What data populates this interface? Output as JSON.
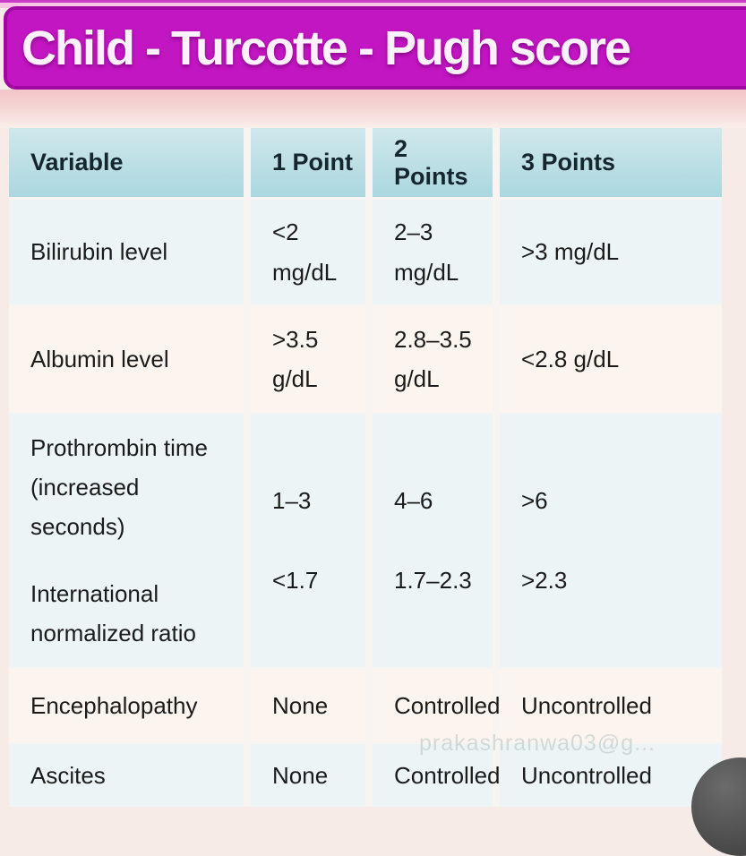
{
  "header": {
    "title": "Child - Turcotte - Pugh score"
  },
  "watermark": {
    "text": "prakashranwa03@g..."
  },
  "table": {
    "headers": [
      "Variable",
      "1 Point",
      "2 Points",
      "3 Points"
    ],
    "rows": [
      {
        "variable": [
          "Bilirubin level"
        ],
        "p1": [
          "<2",
          "mg/dL"
        ],
        "p2": [
          "2–3",
          "mg/dL"
        ],
        "p3": [
          ">3 mg/dL"
        ]
      },
      {
        "variable": [
          "Albumin level"
        ],
        "p1": [
          ">3.5",
          "g/dL"
        ],
        "p2": [
          "2.8–3.5",
          "g/dL"
        ],
        "p3": [
          "<2.8 g/dL"
        ]
      },
      {
        "variable": [
          "Prothrombin time (increased seconds)",
          "International normalized ratio"
        ],
        "p1": [
          "1–3",
          "<1.7"
        ],
        "p2": [
          "4–6",
          "1.7–2.3"
        ],
        "p3": [
          ">6",
          ">2.3"
        ]
      },
      {
        "variable": [
          "Encephalopathy"
        ],
        "p1": [
          "None"
        ],
        "p2": [
          "Controlled"
        ],
        "p3": [
          "Uncontrolled"
        ]
      },
      {
        "variable": [
          "Ascites"
        ],
        "p1": [
          "None"
        ],
        "p2": [
          "Controlled"
        ],
        "p3": [
          "Uncontrolled"
        ]
      }
    ]
  },
  "colors": {
    "title_bar_bg": "#c316c3",
    "title_bar_border": "#a108a1",
    "title_text": "#fdf1fd",
    "top_strip_pink": "#f7c4e4",
    "pink_band": "#f2c5c9",
    "page_bg": "#f6ebe7",
    "header_row_bg": "#abd7df",
    "row_light_bg": "#edf4f6",
    "row_cream_bg": "#fcf5ef",
    "body_text": "#1b1b1b",
    "corner_circle": "#484848"
  }
}
